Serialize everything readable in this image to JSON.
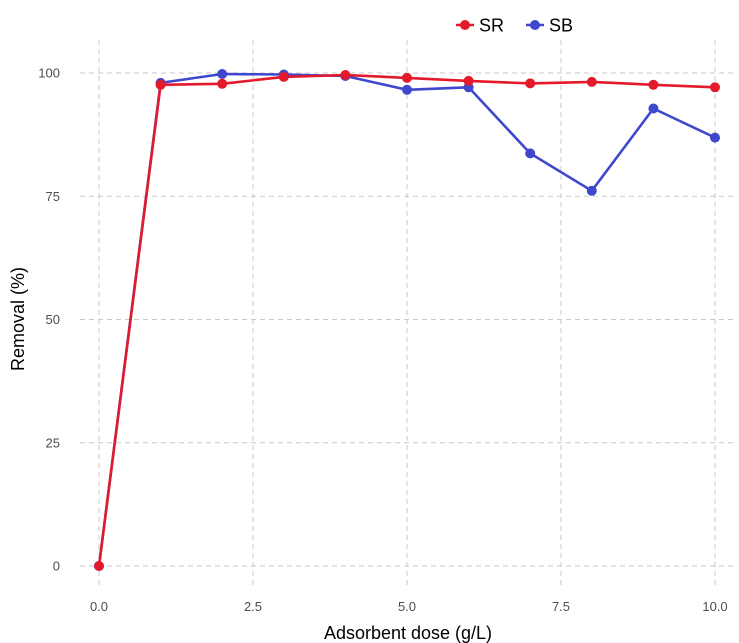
{
  "chart_data": {
    "type": "line",
    "xlabel": "Adsorbent dose (g/L)",
    "ylabel": "Removal (%)",
    "xlim": [
      0,
      10
    ],
    "ylim": [
      0,
      100
    ],
    "x_ticks": [
      0,
      2.5,
      5,
      7.5,
      10
    ],
    "x_tick_labels": [
      "0.0",
      "2.5",
      "5.0",
      "7.5",
      "10.0"
    ],
    "y_ticks": [
      0,
      25,
      50,
      75,
      100
    ],
    "y_tick_labels": [
      "0",
      "25",
      "50",
      "75",
      "100"
    ],
    "grid": true,
    "legend_position": "top-right",
    "series": [
      {
        "name": "SR",
        "color": "#e31a2c",
        "x": [
          0,
          1,
          2,
          3,
          4,
          5,
          6,
          7,
          8,
          9,
          10
        ],
        "y": [
          0,
          97.6,
          97.8,
          99.2,
          99.6,
          99.0,
          98.4,
          97.9,
          98.2,
          97.6,
          97.1
        ]
      },
      {
        "name": "SB",
        "color": "#3f48cc",
        "x": [
          0,
          1,
          2,
          3,
          4,
          5,
          6,
          7,
          8,
          9,
          10
        ],
        "y": [
          0,
          98.0,
          99.8,
          99.7,
          99.4,
          96.6,
          97.1,
          83.7,
          76.1,
          92.8,
          86.9
        ]
      }
    ]
  }
}
